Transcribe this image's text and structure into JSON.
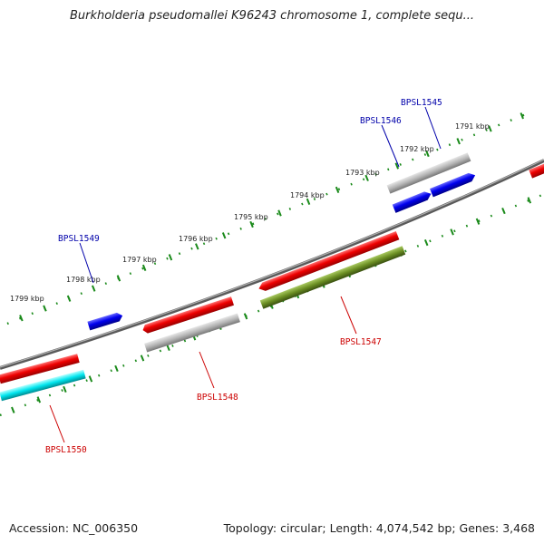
{
  "title": "Burkholderia pseudomallei K96243 chromosome 1, complete sequ...",
  "footer": {
    "accession": "Accession: NC_006350",
    "topology": "Topology: circular; Length: 4,074,542 bp; Genes: 3,468"
  },
  "ruler": [
    {
      "label": "1791 kbp"
    },
    {
      "label": "1792 kbp"
    },
    {
      "label": "1793 kbp"
    },
    {
      "label": "1794 kbp"
    },
    {
      "label": "1795 kbp"
    },
    {
      "label": "1796 kbp"
    },
    {
      "label": "1797 kbp"
    },
    {
      "label": "1798 kbp"
    },
    {
      "label": "1799 kbp"
    }
  ],
  "genes": [
    {
      "label": "BPSL1545",
      "strand": "forward",
      "label_color": "#0000aa"
    },
    {
      "label": "BPSL1546",
      "strand": "forward",
      "label_color": "#0000aa"
    },
    {
      "label": "BPSL1547",
      "strand": "reverse",
      "label_color": "#cc0000"
    },
    {
      "label": "BPSL1548",
      "strand": "reverse",
      "label_color": "#cc0000"
    },
    {
      "label": "BPSL1549",
      "strand": "forward",
      "label_color": "#0000aa"
    },
    {
      "label": "BPSL1550",
      "strand": "reverse",
      "label_color": "#cc0000"
    }
  ],
  "colors": {
    "forward_gene": "#0000ee",
    "reverse_gene": "#ee0000",
    "gray_feature": "#b0b0b0",
    "olive_feature": "#6b8e23",
    "cyan_feature": "#00e5ee",
    "backbone": "#888888",
    "tick": "#1a8a1a"
  }
}
